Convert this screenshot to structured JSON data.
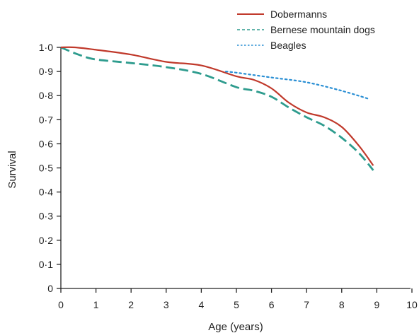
{
  "chart_data": {
    "type": "line",
    "xlabel": "Age (years)",
    "ylabel": "Survival",
    "xlim": [
      0,
      10
    ],
    "ylim": [
      0,
      1.0
    ],
    "x_ticks": [
      0,
      1,
      2,
      3,
      4,
      5,
      6,
      7,
      8,
      9,
      10
    ],
    "x_tick_labels": [
      "0",
      "1",
      "2",
      "3",
      "4",
      "5",
      "6",
      "7",
      "8",
      "9",
      "10"
    ],
    "y_ticks": [
      0,
      0.1,
      0.2,
      0.3,
      0.4,
      0.5,
      0.6,
      0.7,
      0.8,
      0.9,
      1.0
    ],
    "y_tick_labels": [
      "0",
      "0·1",
      "0·2",
      "0·3",
      "0·4",
      "0·5",
      "0·6",
      "0·7",
      "0·8",
      "0·9",
      "1·0"
    ],
    "grid": false,
    "legend_position": "top-right",
    "series": [
      {
        "name": "Dobermanns",
        "color": "#c0392b",
        "style": "solid",
        "points": [
          [
            0,
            1.0
          ],
          [
            0.4,
            1.0
          ],
          [
            1,
            0.99
          ],
          [
            2,
            0.97
          ],
          [
            3,
            0.94
          ],
          [
            4,
            0.925
          ],
          [
            5,
            0.88
          ],
          [
            5.5,
            0.865
          ],
          [
            6,
            0.83
          ],
          [
            6.5,
            0.77
          ],
          [
            7,
            0.73
          ],
          [
            7.5,
            0.71
          ],
          [
            8,
            0.67
          ],
          [
            8.5,
            0.59
          ],
          [
            8.9,
            0.51
          ]
        ]
      },
      {
        "name": "Bernese mountain dogs",
        "color": "#2e9c8e",
        "style": "dashed",
        "points": [
          [
            0,
            1.0
          ],
          [
            0.5,
            0.97
          ],
          [
            1,
            0.95
          ],
          [
            2,
            0.935
          ],
          [
            3,
            0.918
          ],
          [
            4,
            0.89
          ],
          [
            5,
            0.835
          ],
          [
            5.5,
            0.82
          ],
          [
            6,
            0.795
          ],
          [
            6.5,
            0.75
          ],
          [
            7,
            0.71
          ],
          [
            7.5,
            0.675
          ],
          [
            8,
            0.625
          ],
          [
            8.5,
            0.56
          ],
          [
            8.9,
            0.49
          ]
        ]
      },
      {
        "name": "Beagles",
        "color": "#2a8fd4",
        "style": "dotted",
        "points": [
          [
            4.7,
            0.9
          ],
          [
            5,
            0.895
          ],
          [
            6,
            0.875
          ],
          [
            7,
            0.855
          ],
          [
            8,
            0.82
          ],
          [
            8.8,
            0.785
          ]
        ]
      }
    ]
  }
}
